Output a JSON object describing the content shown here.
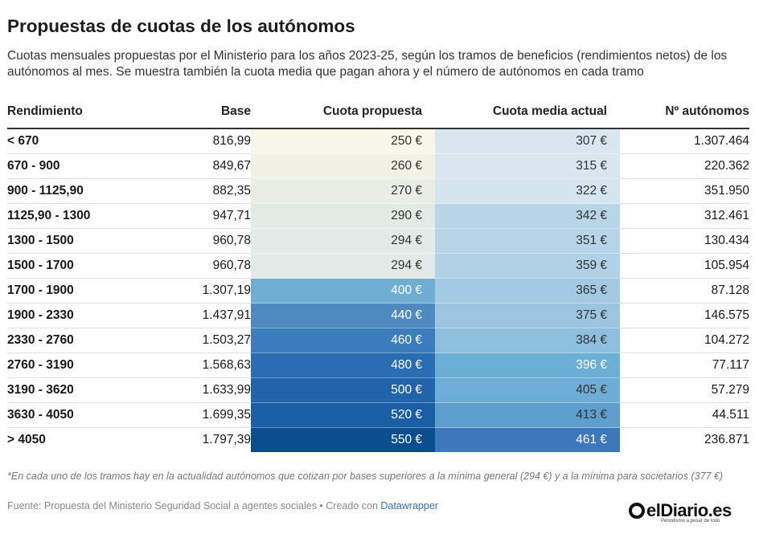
{
  "header": {
    "title": "Propuestas de cuotas de los autónomos",
    "subtitle": "Cuotas mensuales propuestas por el Ministerio para los años 2023-25, según los tramos de beneficios (rendimientos netos) de los autónomos al mes. Se muestra también la cuota media que pagan ahora y el número de autónomos en cada tramo"
  },
  "chart_data": {
    "type": "table",
    "title": "Propuestas de cuotas de los autónomos",
    "columns": [
      "Rendimiento",
      "Base",
      "Cuota propuesta",
      "Cuota media actual",
      "Nº autónomos"
    ],
    "rows": [
      {
        "rendimiento": "< 670",
        "base": "816,99",
        "cuota_propuesta": "250 €",
        "cuota_actual": "307 €",
        "autonomos": "1.307.464",
        "cp_value": 250,
        "ca_value": 307
      },
      {
        "rendimiento": "670 - 900",
        "base": "849,67",
        "cuota_propuesta": "260 €",
        "cuota_actual": "315 €",
        "autonomos": "220.362",
        "cp_value": 260,
        "ca_value": 315
      },
      {
        "rendimiento": "900 - 1125,90",
        "base": "882,35",
        "cuota_propuesta": "270 €",
        "cuota_actual": "322 €",
        "autonomos": "351.950",
        "cp_value": 270,
        "ca_value": 322
      },
      {
        "rendimiento": "1125,90 - 1300",
        "base": "947,71",
        "cuota_propuesta": "290 €",
        "cuota_actual": "342 €",
        "autonomos": "312.461",
        "cp_value": 290,
        "ca_value": 342
      },
      {
        "rendimiento": "1300 - 1500",
        "base": "960,78",
        "cuota_propuesta": "294 €",
        "cuota_actual": "351 €",
        "autonomos": "130.434",
        "cp_value": 294,
        "ca_value": 351
      },
      {
        "rendimiento": "1500 - 1700",
        "base": "960,78",
        "cuota_propuesta": "294 €",
        "cuota_actual": "359 €",
        "autonomos": "105.954",
        "cp_value": 294,
        "ca_value": 359
      },
      {
        "rendimiento": "1700 - 1900",
        "base": "1.307,19",
        "cuota_propuesta": "400 €",
        "cuota_actual": "365 €",
        "autonomos": "87.128",
        "cp_value": 400,
        "ca_value": 365
      },
      {
        "rendimiento": "1900 - 2330",
        "base": "1.437,91",
        "cuota_propuesta": "440 €",
        "cuota_actual": "375 €",
        "autonomos": "146.575",
        "cp_value": 440,
        "ca_value": 375
      },
      {
        "rendimiento": "2330 - 2760",
        "base": "1.503,27",
        "cuota_propuesta": "460 €",
        "cuota_actual": "384 €",
        "autonomos": "104.272",
        "cp_value": 460,
        "ca_value": 384
      },
      {
        "rendimiento": "2760 - 3190",
        "base": "1.568,63",
        "cuota_propuesta": "480 €",
        "cuota_actual": "396 €",
        "autonomos": "77.117",
        "cp_value": 480,
        "ca_value": 396
      },
      {
        "rendimiento": "3190 - 3620",
        "base": "1.633,99",
        "cuota_propuesta": "500 €",
        "cuota_actual": "405 €",
        "autonomos": "57.279",
        "cp_value": 500,
        "ca_value": 405
      },
      {
        "rendimiento": "3630 - 4050",
        "base": "1.699,35",
        "cuota_propuesta": "520 €",
        "cuota_actual": "413 €",
        "autonomos": "44.511",
        "cp_value": 520,
        "ca_value": 413
      },
      {
        "rendimiento": "> 4050",
        "base": "1.797,39",
        "cuota_propuesta": "550 €",
        "cuota_actual": "461 €",
        "autonomos": "236.871",
        "cp_value": 550,
        "ca_value": 461
      }
    ],
    "cuota_propuesta_cell_colors": [
      "#f8f6e6",
      "#f1f2e4",
      "#e9eee4",
      "#e2eae6",
      "#e2eae8",
      "#e2eae8",
      "#6eaed3",
      "#4e8ac0",
      "#3a7cbc",
      "#2a6db3",
      "#2264ab",
      "#1a5ea5",
      "#0b4e8f"
    ],
    "cuota_actual_cell_colors": [
      "#d8e7ef",
      "#d8e7ef",
      "#d4e5ef",
      "#b9d5e8",
      "#b7d4e8",
      "#b1d1e7",
      "#a3c9e3",
      "#9cc5e1",
      "#8fbfdf",
      "#6baed6",
      "#6eaed6",
      "#5e9fcf",
      "#3c78bb"
    ],
    "text_colors_cuota_propuesta": [
      "#333333",
      "#333333",
      "#333333",
      "#333333",
      "#333333",
      "#333333",
      "#ffffff",
      "#ffffff",
      "#ffffff",
      "#ffffff",
      "#ffffff",
      "#ffffff",
      "#ffffff"
    ],
    "text_colors_cuota_actual": [
      "#333333",
      "#333333",
      "#333333",
      "#333333",
      "#333333",
      "#333333",
      "#333333",
      "#333333",
      "#333333",
      "#ffffff",
      "#333333",
      "#333333",
      "#ffffff"
    ]
  },
  "footer": {
    "note": "*En cada uno de los tramos hay en la actualidad autónomos que cotizan por bases superiores a la mínima general (294 €) y a la mínima para societarios (377 €)",
    "source_prefix": "Fuente: Propuesta del Ministerio Seguridad Social a agentes sociales • Creado con ",
    "source_link": "Datawrapper",
    "logo_text": "elDiario.es",
    "logo_tagline": "Periodismo a pesar de todo"
  }
}
